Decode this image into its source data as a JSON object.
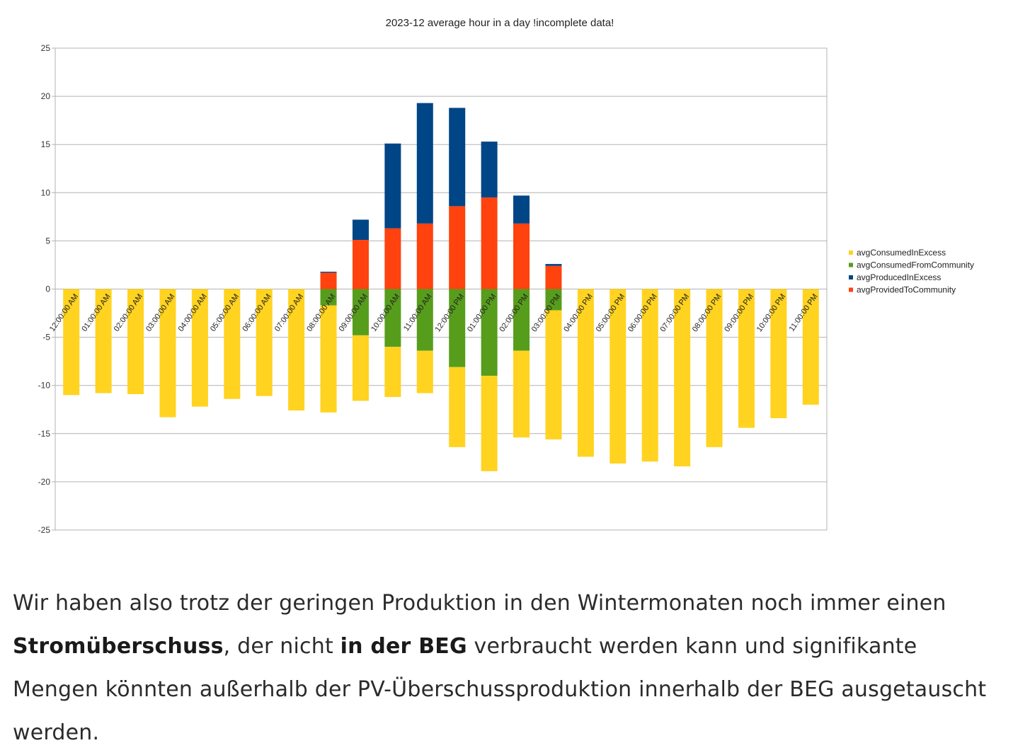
{
  "chart_data": {
    "type": "bar",
    "stacked": true,
    "title": "2023-12 average hour in a day !incomplete data!",
    "xlabel": "",
    "ylabel": "",
    "ylim": [
      -25,
      25
    ],
    "yticks": [
      25,
      20,
      15,
      10,
      5,
      0,
      -5,
      -10,
      -15,
      -20,
      -25
    ],
    "grid": true,
    "legend_position": "right",
    "categories": [
      "12:00:00 AM",
      "01:00:00 AM",
      "02:00:00 AM",
      "03:00:00 AM",
      "04:00:00 AM",
      "05:00:00 AM",
      "06:00:00 AM",
      "07:00:00 AM",
      "08:00:00 AM",
      "09:00:00 AM",
      "10:00:00 AM",
      "11:00:00 AM",
      "12:00:00 PM",
      "01:00:00 PM",
      "02:00:00 PM",
      "03:00:00 PM",
      "04:00:00 PM",
      "05:00:00 PM",
      "06:00:00 PM",
      "07:00:00 PM",
      "08:00:00 PM",
      "09:00:00 PM",
      "10:00:00 PM",
      "11:00:00 PM"
    ],
    "series": [
      {
        "name": "avgConsumedInExcess",
        "color": "#ffd320",
        "values": [
          -11.0,
          -10.8,
          -10.9,
          -13.3,
          -12.2,
          -11.4,
          -11.1,
          -12.6,
          -11.1,
          -6.8,
          -5.2,
          -4.4,
          -8.3,
          -9.9,
          -9.0,
          -13.4,
          -17.4,
          -18.1,
          -17.9,
          -18.4,
          -16.4,
          -14.4,
          -13.4,
          -12.0
        ]
      },
      {
        "name": "avgConsumedFromCommunity",
        "color": "#579d1c",
        "values": [
          0,
          0,
          0,
          0,
          0,
          0,
          0,
          0,
          -1.7,
          -4.8,
          -6.0,
          -6.4,
          -8.1,
          -9.0,
          -6.4,
          -2.2,
          0,
          0,
          0,
          0,
          0,
          0,
          0,
          0
        ]
      },
      {
        "name": "avgProducedInExcess",
        "color": "#004586",
        "values": [
          0,
          0,
          0,
          0,
          0,
          0,
          0,
          0,
          0.1,
          2.1,
          8.8,
          12.5,
          10.2,
          5.8,
          2.9,
          0.2,
          0,
          0,
          0,
          0,
          0,
          0,
          0,
          0
        ]
      },
      {
        "name": "avgProvidedToCommunity",
        "color": "#ff420e",
        "values": [
          0,
          0,
          0,
          0,
          0,
          0,
          0,
          0,
          1.7,
          5.1,
          6.3,
          6.8,
          8.6,
          9.5,
          6.8,
          2.4,
          0,
          0,
          0,
          0,
          0,
          0,
          0,
          0
        ]
      }
    ],
    "stack_order": {
      "negative": [
        "avgConsumedFromCommunity",
        "avgConsumedInExcess"
      ],
      "positive": [
        "avgProvidedToCommunity",
        "avgProducedInExcess"
      ]
    }
  },
  "article": {
    "part1": "Wir haben also trotz der geringen Produktion in den Wintermonaten noch immer einen ",
    "bold1": "Stromüberschuss",
    "part2": ", der nicht ",
    "bold2": "in der BEG",
    "part3": " verbraucht werden kann und signifikante Mengen könnten außerhalb der PV-Überschussproduktion innerhalb der BEG ausgetauscht werden."
  }
}
